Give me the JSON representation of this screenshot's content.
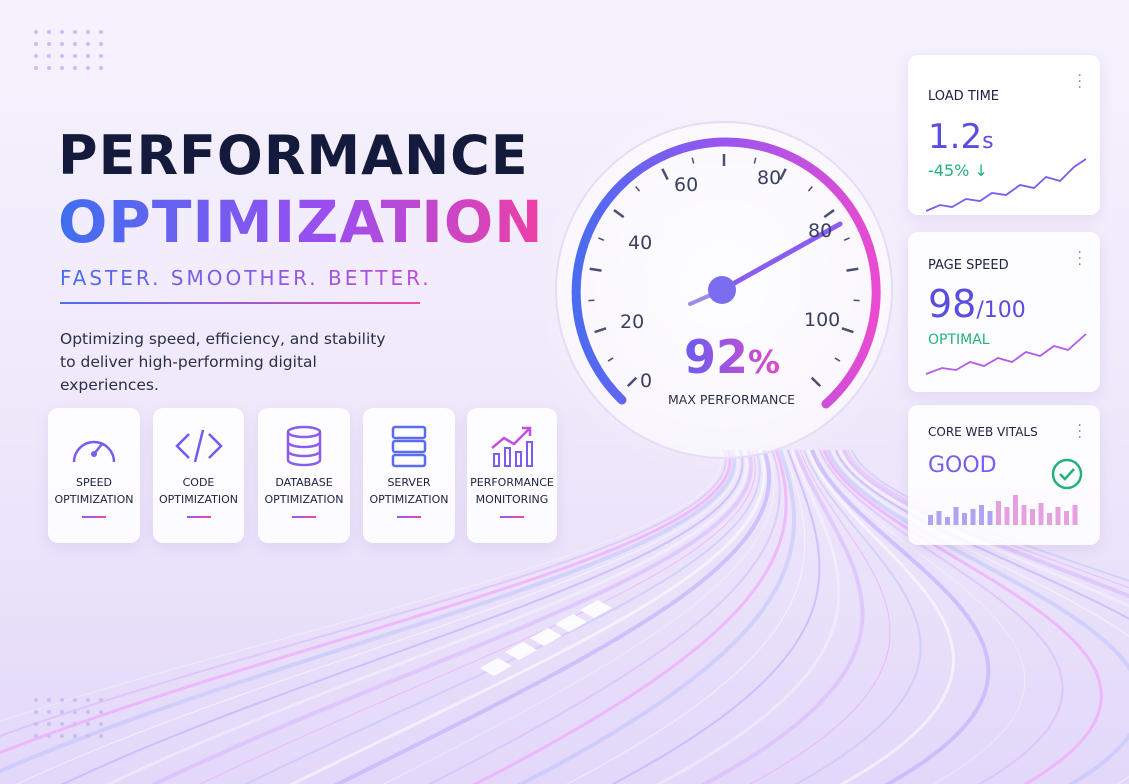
{
  "header": {
    "title_line1": "PERFORMANCE",
    "title_line2": "OPTIMIZATION",
    "tagline": "FASTER. SMOOTHER. BETTER.",
    "description": "Optimizing speed, efficiency, and stability to deliver high-performing digital experiences."
  },
  "features": [
    {
      "line1": "SPEED",
      "line2": "OPTIMIZATION"
    },
    {
      "line1": "CODE",
      "line2": "OPTIMIZATION"
    },
    {
      "line1": "DATABASE",
      "line2": "OPTIMIZATION"
    },
    {
      "line1": "SERVER",
      "line2": "OPTIMIZATION"
    },
    {
      "line1": "PERFORMANCE",
      "line2": "MONITORING"
    }
  ],
  "gauge": {
    "tick_labels": [
      "0",
      "20",
      "40",
      "60",
      "80",
      "80",
      "100"
    ],
    "value": "92",
    "unit": "%",
    "label": "MAX PERFORMANCE"
  },
  "metrics": [
    {
      "title": "LOAD TIME",
      "value": "1.2",
      "unit": "s",
      "change": "-45%"
    },
    {
      "title": "PAGE SPEED",
      "value": "98",
      "unit": "/100",
      "status": "OPTIMAL"
    },
    {
      "title": "CORE WEB VITALS",
      "value": "GOOD"
    }
  ]
}
